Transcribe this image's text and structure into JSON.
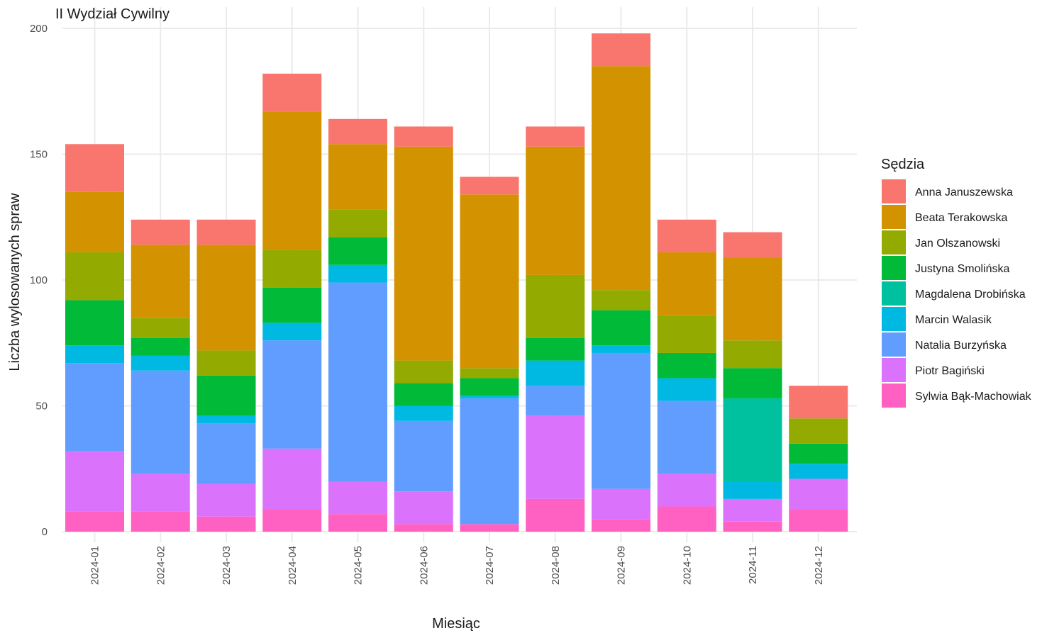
{
  "chart_data": {
    "type": "bar",
    "stacked": true,
    "title": "II Wydział Cywilny",
    "xlabel": "Miesiąc",
    "ylabel": "Liczba wylosowanych spraw",
    "ylim": [
      0,
      200
    ],
    "yticks": [
      0,
      50,
      100,
      150,
      200
    ],
    "grid": true,
    "legend": {
      "title": "Sędzia",
      "placement": "right"
    },
    "categories": [
      "2024-01",
      "2024-02",
      "2024-03",
      "2024-04",
      "2024-05",
      "2024-06",
      "2024-07",
      "2024-08",
      "2024-09",
      "2024-10",
      "2024-11",
      "2024-12"
    ],
    "series": [
      {
        "name": "Sylwia Bąk-Machowiak",
        "color": "#FF61C3",
        "values": [
          8,
          8,
          6,
          9,
          7,
          3,
          3,
          13,
          5,
          10,
          4,
          9
        ]
      },
      {
        "name": "Piotr Bagiński",
        "color": "#DB72FB",
        "values": [
          24,
          15,
          13,
          24,
          13,
          13,
          0,
          33,
          12,
          13,
          9,
          12
        ]
      },
      {
        "name": "Natalia Burzyńska",
        "color": "#619CFF",
        "values": [
          35,
          41,
          24,
          43,
          79,
          28,
          50,
          12,
          54,
          29,
          0,
          0
        ]
      },
      {
        "name": "Marcin Walasik",
        "color": "#00B9E3",
        "values": [
          7,
          6,
          3,
          7,
          7,
          6,
          1,
          10,
          3,
          9,
          7,
          6
        ]
      },
      {
        "name": "Magdalena Drobińska",
        "color": "#00C19F",
        "values": [
          0,
          0,
          0,
          0,
          0,
          0,
          0,
          0,
          0,
          0,
          33,
          0
        ]
      },
      {
        "name": "Justyna Smolińska",
        "color": "#00BA38",
        "values": [
          18,
          7,
          16,
          14,
          11,
          9,
          7,
          9,
          14,
          10,
          12,
          8
        ]
      },
      {
        "name": "Jan Olszanowski",
        "color": "#93AA00",
        "values": [
          19,
          8,
          10,
          15,
          11,
          9,
          4,
          25,
          8,
          15,
          11,
          10
        ]
      },
      {
        "name": "Beata Terakowska",
        "color": "#D39200",
        "values": [
          24,
          29,
          42,
          55,
          26,
          85,
          69,
          51,
          89,
          25,
          33,
          0
        ]
      },
      {
        "name": "Anna Januszewska",
        "color": "#F8766D",
        "values": [
          19,
          10,
          10,
          15,
          10,
          8,
          7,
          8,
          13,
          13,
          10,
          13
        ]
      }
    ],
    "legend_order": [
      "Anna Januszewska",
      "Beata Terakowska",
      "Jan Olszanowski",
      "Justyna Smolińska",
      "Magdalena Drobińska",
      "Marcin Walasik",
      "Natalia Burzyńska",
      "Piotr Bagiński",
      "Sylwia Bąk-Machowiak"
    ]
  }
}
